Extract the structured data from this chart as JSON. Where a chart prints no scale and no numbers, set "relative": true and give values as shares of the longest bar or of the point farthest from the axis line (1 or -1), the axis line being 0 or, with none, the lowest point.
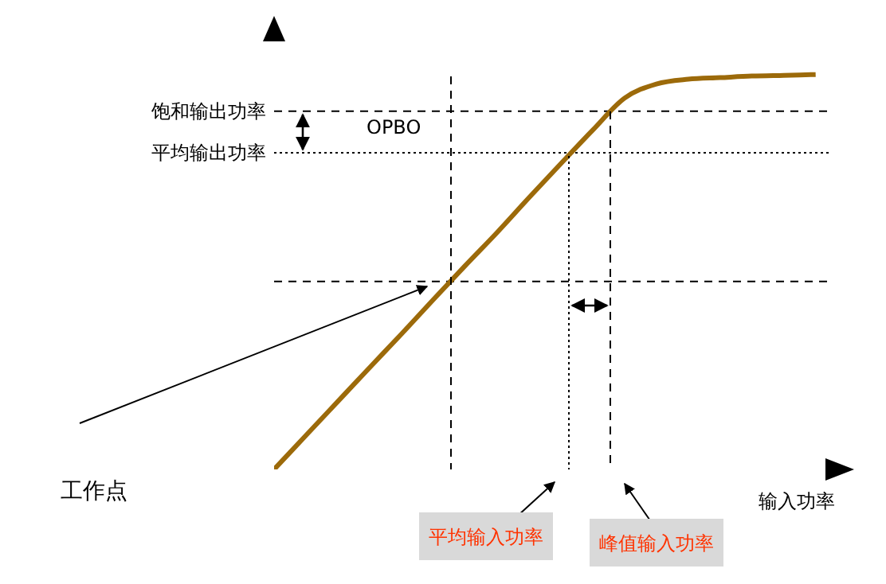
{
  "chart_data": {
    "type": "line",
    "relative": true,
    "xlabel": "输入功率",
    "categories": [
      null,
      null,
      null,
      null,
      null,
      null,
      null,
      null,
      null,
      null,
      null,
      null,
      null,
      null,
      null,
      null,
      null,
      null
    ],
    "series": [
      {
        "color": "#9c6a0a",
        "values": [
          0,
          0.086,
          0.172,
          0.258,
          0.343,
          0.43,
          0.516,
          0.6,
          0.688,
          0.774,
          0.859,
          0.94,
          0.976,
          0.988,
          0.992,
          0.996,
          0.998,
          1
        ]
      }
    ],
    "ref_lines": [
      {
        "axis": "y",
        "value": 0.907,
        "label": "饱和输出功率",
        "line_style": "dashed",
        "color": "#000000"
      },
      {
        "axis": "y",
        "value": 0.802,
        "label": "平均输出功率",
        "line_style": "dotted",
        "color": "#000000"
      },
      {
        "axis": "y",
        "value": 0.476,
        "line_style": "dashed",
        "color": "#000000"
      }
    ],
    "annotations": [
      "OPBO",
      "工作点",
      "平均输入功率",
      "峰值输入功率"
    ],
    "marker": "none",
    "line_style": "solid"
  }
}
